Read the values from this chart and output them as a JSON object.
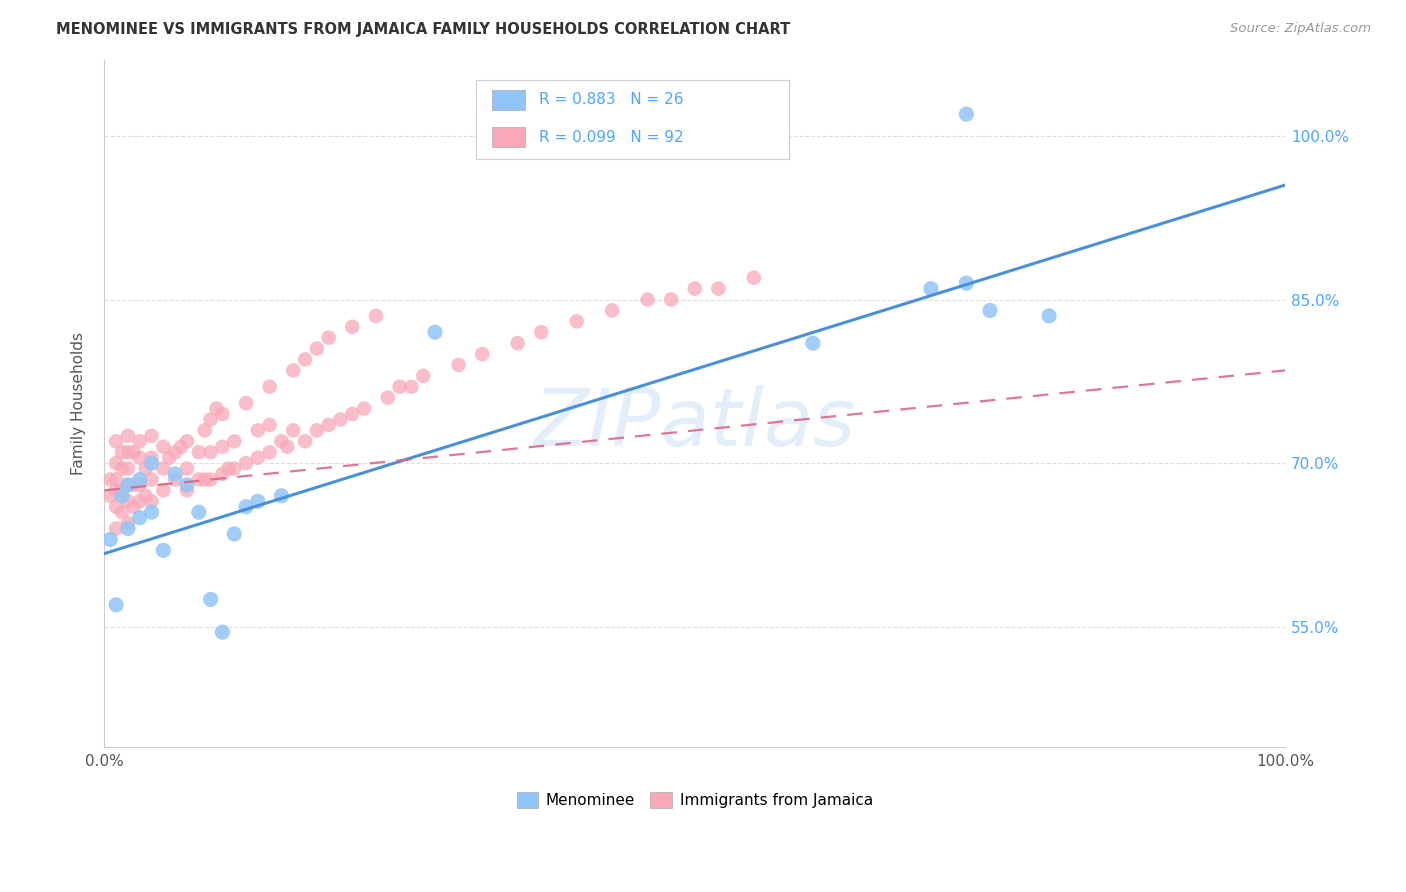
{
  "title": "MENOMINEE VS IMMIGRANTS FROM JAMAICA FAMILY HOUSEHOLDS CORRELATION CHART",
  "source": "Source: ZipAtlas.com",
  "ylabel": "Family Households",
  "watermark": "ZIPatlas",
  "legend_label_blue": "Menominee",
  "legend_label_pink": "Immigrants from Jamaica",
  "blue_color": "#92c5f7",
  "pink_color": "#f8a8b8",
  "blue_line_color": "#4a90d9",
  "pink_line_color": "#d96080",
  "right_axis_color": "#4da6ff",
  "text_color": "#333333",
  "source_color": "#999999",
  "grid_color": "#e0e0e0",
  "background_color": "#ffffff",
  "xlim": [
    0.0,
    1.0
  ],
  "ylim": [
    0.44,
    1.07
  ],
  "ytick_positions": [
    0.55,
    0.7,
    0.85,
    1.0
  ],
  "ytick_labels": [
    "55.0%",
    "70.0%",
    "85.0%",
    "100.0%"
  ],
  "blue_x": [
    0.005,
    0.01,
    0.015,
    0.02,
    0.02,
    0.03,
    0.03,
    0.04,
    0.04,
    0.05,
    0.06,
    0.07,
    0.08,
    0.09,
    0.1,
    0.11,
    0.12,
    0.13,
    0.15,
    0.28,
    0.6,
    0.7,
    0.73,
    0.75,
    0.8,
    0.73
  ],
  "blue_y": [
    0.63,
    0.57,
    0.67,
    0.64,
    0.68,
    0.65,
    0.685,
    0.655,
    0.7,
    0.62,
    0.69,
    0.68,
    0.655,
    0.575,
    0.545,
    0.635,
    0.66,
    0.665,
    0.67,
    0.82,
    0.81,
    0.86,
    0.865,
    0.84,
    0.835,
    1.02
  ],
  "pink_x": [
    0.005,
    0.005,
    0.01,
    0.01,
    0.01,
    0.01,
    0.01,
    0.01,
    0.015,
    0.015,
    0.015,
    0.015,
    0.02,
    0.02,
    0.02,
    0.02,
    0.02,
    0.02,
    0.025,
    0.025,
    0.025,
    0.03,
    0.03,
    0.03,
    0.03,
    0.035,
    0.035,
    0.04,
    0.04,
    0.04,
    0.04,
    0.05,
    0.05,
    0.05,
    0.055,
    0.06,
    0.06,
    0.065,
    0.07,
    0.07,
    0.07,
    0.08,
    0.08,
    0.085,
    0.09,
    0.09,
    0.1,
    0.1,
    0.105,
    0.11,
    0.11,
    0.12,
    0.13,
    0.13,
    0.14,
    0.14,
    0.15,
    0.155,
    0.16,
    0.17,
    0.18,
    0.19,
    0.2,
    0.21,
    0.22,
    0.24,
    0.25,
    0.26,
    0.27,
    0.3,
    0.32,
    0.35,
    0.37,
    0.4,
    0.43,
    0.46,
    0.48,
    0.5,
    0.52,
    0.55,
    0.1,
    0.12,
    0.14,
    0.16,
    0.17,
    0.18,
    0.19,
    0.21,
    0.23,
    0.085,
    0.09,
    0.095
  ],
  "pink_y": [
    0.67,
    0.685,
    0.64,
    0.66,
    0.675,
    0.685,
    0.7,
    0.72,
    0.655,
    0.675,
    0.695,
    0.71,
    0.645,
    0.665,
    0.68,
    0.695,
    0.71,
    0.725,
    0.66,
    0.68,
    0.71,
    0.665,
    0.68,
    0.705,
    0.72,
    0.67,
    0.695,
    0.665,
    0.685,
    0.705,
    0.725,
    0.675,
    0.695,
    0.715,
    0.705,
    0.685,
    0.71,
    0.715,
    0.675,
    0.695,
    0.72,
    0.685,
    0.71,
    0.685,
    0.685,
    0.71,
    0.69,
    0.715,
    0.695,
    0.695,
    0.72,
    0.7,
    0.705,
    0.73,
    0.71,
    0.735,
    0.72,
    0.715,
    0.73,
    0.72,
    0.73,
    0.735,
    0.74,
    0.745,
    0.75,
    0.76,
    0.77,
    0.77,
    0.78,
    0.79,
    0.8,
    0.81,
    0.82,
    0.83,
    0.84,
    0.85,
    0.85,
    0.86,
    0.86,
    0.87,
    0.745,
    0.755,
    0.77,
    0.785,
    0.795,
    0.805,
    0.815,
    0.825,
    0.835,
    0.73,
    0.74,
    0.75
  ],
  "blue_line_x0": 0.0,
  "blue_line_x1": 1.0,
  "blue_line_y0": 0.617,
  "blue_line_y1": 0.955,
  "pink_line_x0": 0.0,
  "pink_line_x1": 1.0,
  "pink_line_y0": 0.675,
  "pink_line_y1": 0.785
}
